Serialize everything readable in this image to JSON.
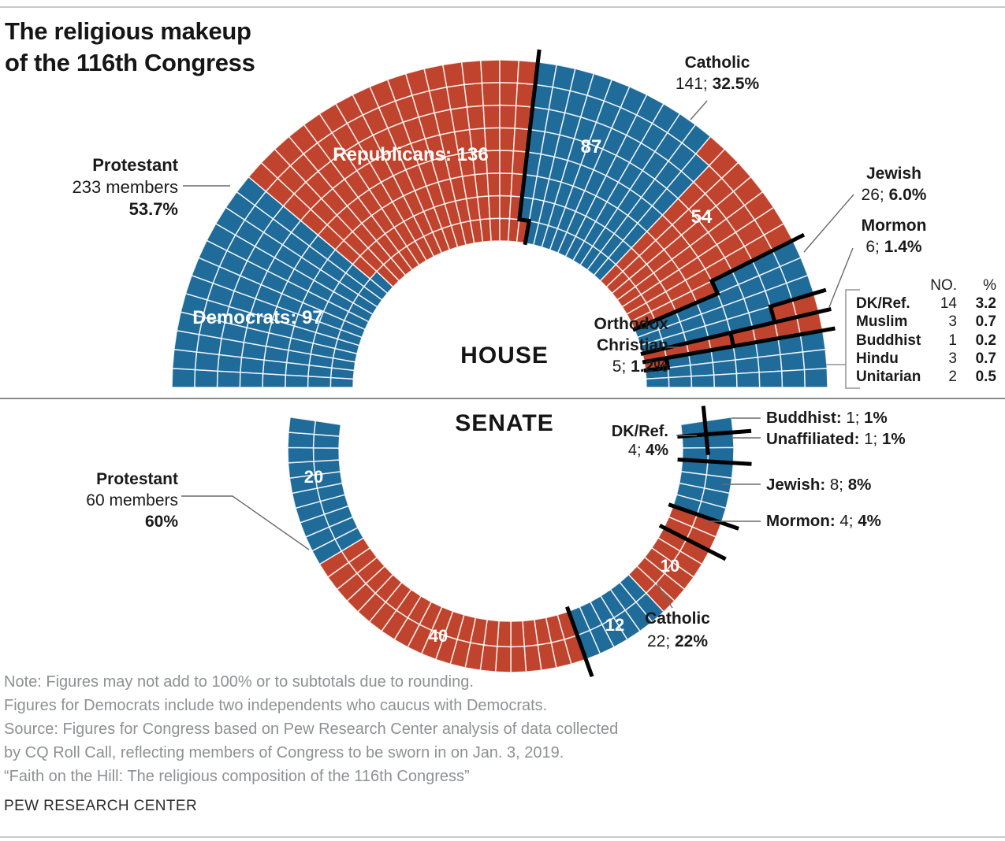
{
  "title": {
    "line1": "The religious makeup",
    "line2": "of the 116th Congress"
  },
  "colors": {
    "blue": "#1F6B9A",
    "red": "#C0442D",
    "divider": "#000000",
    "grid": "#FFFFFF"
  },
  "chart_data": [
    {
      "type": "parliament-arc",
      "chamber": "House",
      "total_members": 434,
      "seat_rows": 8,
      "legend_note": "blue = Democrats, red = Republicans",
      "groups": [
        {
          "religion": "Protestant",
          "party": "Democrat",
          "seats": 97,
          "color": "blue"
        },
        {
          "religion": "Protestant",
          "party": "Republican",
          "seats": 136,
          "color": "red"
        },
        {
          "religion": "Catholic",
          "party": "Democrat",
          "seats": 87,
          "color": "blue"
        },
        {
          "religion": "Catholic",
          "party": "Republican",
          "seats": 54,
          "color": "red"
        },
        {
          "religion": "Jewish",
          "seats": 26,
          "color": "blue"
        },
        {
          "religion": "Mormon",
          "seats": 6,
          "color": "red"
        },
        {
          "religion": "Orthodox Christian",
          "seats": 5,
          "color": "red"
        },
        {
          "religion": "Other (DK/Ref., Muslim, Buddhist, Hindu, Unitarian)",
          "seats": 23,
          "color": "blue"
        }
      ],
      "annotations": {
        "chamber_label": "HOUSE",
        "protestant": {
          "name": "Protestant",
          "members": "233 members",
          "pct": "53.7%"
        },
        "catholic": {
          "name": "Catholic",
          "num": "141; ",
          "pct": "32.5%"
        },
        "jewish": {
          "name": "Jewish",
          "num": "26; ",
          "pct": "6.0%"
        },
        "mormon": {
          "name": "Mormon",
          "num": "6; ",
          "pct": "1.4%"
        },
        "orthodox": {
          "name1": "Orthodox",
          "name2": "Christian",
          "num": "5; ",
          "pct": "1.2%"
        },
        "democrats": "Democrats: 97",
        "republicans": "Republicans: 136",
        "catholic_dem": "87",
        "catholic_rep": "54"
      },
      "side_table": {
        "headers": {
          "no": "NO.",
          "pct": "%"
        },
        "rows": [
          {
            "name": "DK/Ref.",
            "no": "14",
            "pct": "3.2"
          },
          {
            "name": "Muslim",
            "no": "3",
            "pct": "0.7"
          },
          {
            "name": "Buddhist",
            "no": "1",
            "pct": "0.2"
          },
          {
            "name": "Hindu",
            "no": "3",
            "pct": "0.7"
          },
          {
            "name": "Unitarian",
            "no": "2",
            "pct": "0.5"
          }
        ]
      }
    },
    {
      "type": "parliament-ring",
      "chamber": "Senate",
      "total_members": 100,
      "seat_rows": 2,
      "groups": [
        {
          "religion": "Unaffiliated",
          "seats": 1,
          "color": "blue"
        },
        {
          "religion": "Buddhist",
          "seats": 1,
          "color": "blue"
        },
        {
          "religion": "DK/Ref.",
          "seats": 4,
          "color": "blue"
        },
        {
          "religion": "Jewish",
          "seats": 8,
          "color": "blue"
        },
        {
          "religion": "Mormon",
          "seats": 4,
          "color": "red"
        },
        {
          "religion": "Catholic",
          "party": "Republican",
          "seats": 10,
          "color": "red"
        },
        {
          "religion": "Catholic",
          "party": "Democrat",
          "seats": 12,
          "color": "blue"
        },
        {
          "religion": "Protestant",
          "party": "Republican",
          "seats": 40,
          "color": "red"
        },
        {
          "religion": "Protestant",
          "party": "Democrat",
          "seats": 20,
          "color": "blue"
        }
      ],
      "annotations": {
        "chamber_label": "SENATE",
        "protestant": {
          "name": "Protestant",
          "members": "60 members",
          "pct": "60%"
        },
        "dkref": {
          "name": "DK/Ref.",
          "num": "4; ",
          "pct": "4%"
        },
        "buddhist": {
          "name": "Buddhist:",
          "num": " 1; ",
          "pct": "1%"
        },
        "unaffiliated": {
          "name": "Unaffiliated:",
          "num": " 1; ",
          "pct": "1%"
        },
        "jewish": {
          "name": "Jewish:",
          "num": " 8; ",
          "pct": "8%"
        },
        "mormon": {
          "name": "Mormon:",
          "num": " 4; ",
          "pct": "4%"
        },
        "catholic": {
          "name": "Catholic",
          "num": "22; ",
          "pct": "22%"
        },
        "prot_dem": "20",
        "prot_rep": "40",
        "cath_dem": "12",
        "cath_rep": "10"
      }
    }
  ],
  "notes": {
    "line1": "Note: Figures may not add to 100% or to subtotals due to rounding.",
    "line2": "Figures for Democrats include two independents who caucus with Democrats.",
    "line3": "Source: Figures for Congress based on Pew Research Center analysis of data collected",
    "line4": "by CQ Roll Call, reflecting members of Congress to be sworn in on Jan. 3, 2019.",
    "line5": "“Faith on the Hill: The religious composition of the 116th Congress”"
  },
  "footer": "PEW RESEARCH CENTER"
}
